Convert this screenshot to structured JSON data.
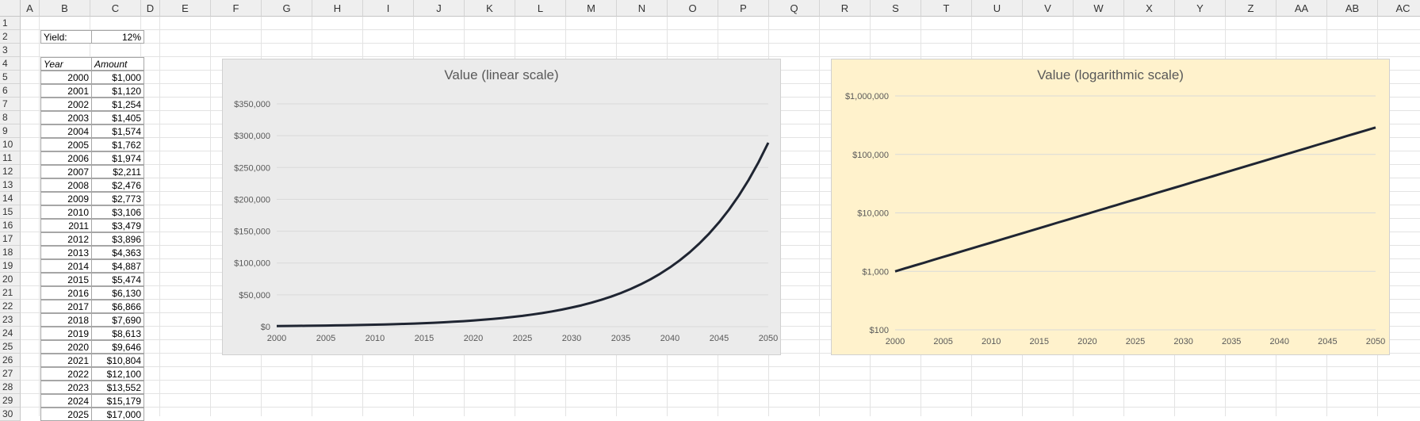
{
  "columns": [
    "A",
    "B",
    "C",
    "D",
    "E",
    "F",
    "G",
    "H",
    "I",
    "J",
    "K",
    "L",
    "M",
    "N",
    "O",
    "P",
    "Q",
    "R",
    "S",
    "T",
    "U",
    "V",
    "W",
    "X",
    "Y",
    "Z",
    "AA",
    "AB",
    "AC"
  ],
  "rows": [
    "1",
    "2",
    "3",
    "4",
    "5",
    "6",
    "7",
    "8",
    "9",
    "10",
    "11",
    "12",
    "13",
    "14",
    "15",
    "16",
    "17",
    "18",
    "19",
    "20",
    "21",
    "22",
    "23",
    "24",
    "25",
    "26",
    "27",
    "28",
    "29",
    "30"
  ],
  "yield": {
    "label": "Yield:",
    "value": "12%"
  },
  "table": {
    "headers": [
      "Year",
      "Amount"
    ],
    "rows": [
      [
        "2000",
        "$1,000"
      ],
      [
        "2001",
        "$1,120"
      ],
      [
        "2002",
        "$1,254"
      ],
      [
        "2003",
        "$1,405"
      ],
      [
        "2004",
        "$1,574"
      ],
      [
        "2005",
        "$1,762"
      ],
      [
        "2006",
        "$1,974"
      ],
      [
        "2007",
        "$2,211"
      ],
      [
        "2008",
        "$2,476"
      ],
      [
        "2009",
        "$2,773"
      ],
      [
        "2010",
        "$3,106"
      ],
      [
        "2011",
        "$3,479"
      ],
      [
        "2012",
        "$3,896"
      ],
      [
        "2013",
        "$4,363"
      ],
      [
        "2014",
        "$4,887"
      ],
      [
        "2015",
        "$5,474"
      ],
      [
        "2016",
        "$6,130"
      ],
      [
        "2017",
        "$6,866"
      ],
      [
        "2018",
        "$7,690"
      ],
      [
        "2019",
        "$8,613"
      ],
      [
        "2020",
        "$9,646"
      ],
      [
        "2021",
        "$10,804"
      ],
      [
        "2022",
        "$12,100"
      ],
      [
        "2023",
        "$13,552"
      ],
      [
        "2024",
        "$15,179"
      ],
      [
        "2025",
        "$17,000"
      ]
    ]
  },
  "chart_data": [
    {
      "type": "line",
      "title": "Value (linear scale)",
      "xlabel": "",
      "ylabel": "",
      "x_start": 2000,
      "x_end": 2050,
      "growth_rate": 0.12,
      "start_value": 1000,
      "xticks": [
        "2000",
        "2005",
        "2010",
        "2015",
        "2020",
        "2025",
        "2030",
        "2035",
        "2040",
        "2045",
        "2050"
      ],
      "yticks": [
        "$0",
        "$50,000",
        "$100,000",
        "$150,000",
        "$200,000",
        "$250,000",
        "$300,000",
        "$350,000"
      ],
      "ylim": [
        0,
        350000
      ],
      "scale": "linear",
      "grid": true,
      "background": "#ebebeb",
      "line_color": "#1f2532"
    },
    {
      "type": "line",
      "title": "Value (logarithmic scale)",
      "xlabel": "",
      "ylabel": "",
      "x_start": 2000,
      "x_end": 2050,
      "growth_rate": 0.12,
      "start_value": 1000,
      "xticks": [
        "2000",
        "2005",
        "2010",
        "2015",
        "2020",
        "2025",
        "2030",
        "2035",
        "2040",
        "2045",
        "2050"
      ],
      "yticks": [
        "$100",
        "$1,000",
        "$10,000",
        "$100,000",
        "$1,000,000"
      ],
      "ylim": [
        100,
        1000000
      ],
      "scale": "log",
      "grid": true,
      "background": "#fff2cc",
      "line_color": "#1f2532"
    }
  ]
}
